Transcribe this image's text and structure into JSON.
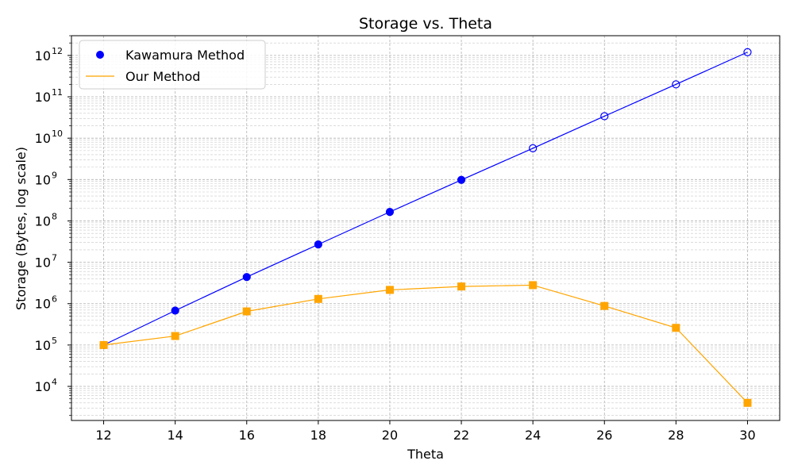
{
  "chart_data": {
    "type": "line",
    "title": "Storage vs. Theta",
    "xlabel": "Theta",
    "ylabel": "Storage (Bytes, log scale)",
    "x": [
      12,
      14,
      16,
      18,
      20,
      22,
      24,
      26,
      28,
      30
    ],
    "xticks": [
      "12",
      "14",
      "16",
      "18",
      "20",
      "22",
      "24",
      "26",
      "28",
      "30"
    ],
    "xlim": [
      11.1,
      30.9
    ],
    "ylim": [
      1500,
      3000000000000
    ],
    "yscale": "log",
    "yticks": [
      {
        "base": "10",
        "exp": "4",
        "value": 10000
      },
      {
        "base": "10",
        "exp": "5",
        "value": 100000
      },
      {
        "base": "10",
        "exp": "6",
        "value": 1000000
      },
      {
        "base": "10",
        "exp": "7",
        "value": 10000000
      },
      {
        "base": "10",
        "exp": "8",
        "value": 100000000
      },
      {
        "base": "10",
        "exp": "9",
        "value": 1000000000
      },
      {
        "base": "10",
        "exp": "10",
        "value": 10000000000
      },
      {
        "base": "10",
        "exp": "11",
        "value": 100000000000
      },
      {
        "base": "10",
        "exp": "12",
        "value": 1000000000000
      }
    ],
    "grid": true,
    "legend_position": "top-left",
    "series": [
      {
        "name": "Kawamura Method",
        "color": "#0000ff",
        "marker": "circle",
        "values": [
          100000,
          680000,
          4400000,
          27000000,
          165000000,
          980000000,
          5700000000,
          34000000000,
          200000000000,
          1200000000000
        ],
        "marker_filled": [
          true,
          true,
          true,
          true,
          true,
          true,
          false,
          false,
          false,
          false
        ]
      },
      {
        "name": "Our Method",
        "color": "#ffa500",
        "marker": "square",
        "values": [
          100000,
          165000,
          650000,
          1300000,
          2150000,
          2600000,
          2800000,
          880000,
          260000,
          4000
        ]
      }
    ]
  }
}
